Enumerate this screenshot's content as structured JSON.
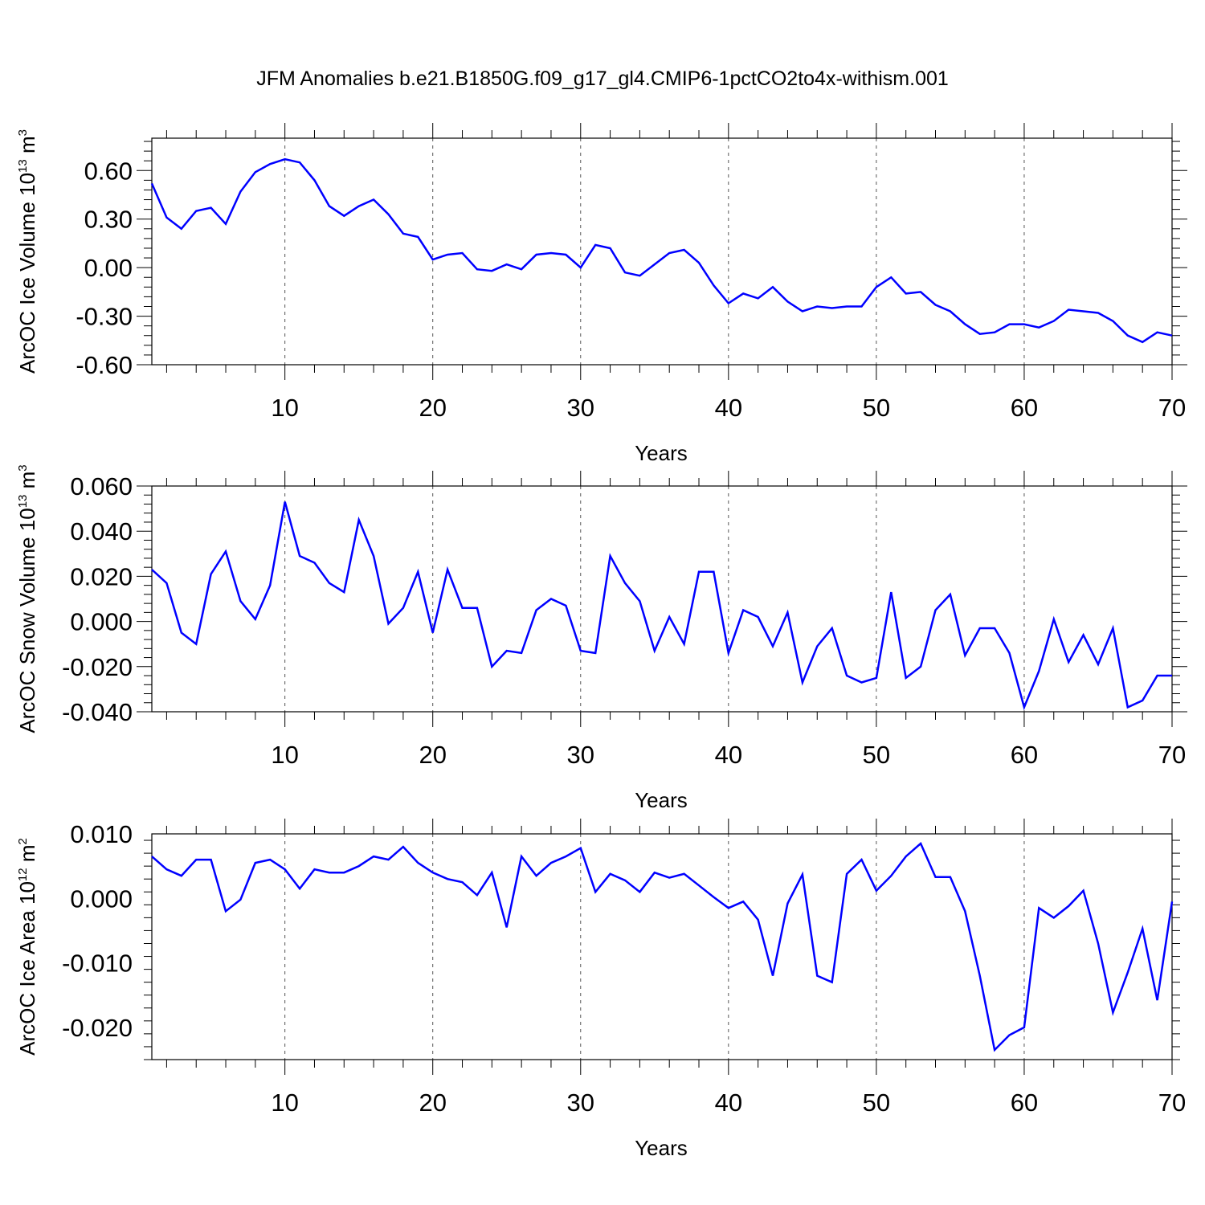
{
  "title": "JFM Anomalies b.e21.B1850G.f09_g17_gl4.CMIP6-1pctCO2to4x-withism.001",
  "colors": {
    "line": "#0000ff",
    "axes": "#000000",
    "grid": "#555555"
  },
  "chart_data": [
    {
      "type": "line",
      "ylabel": "ArcOC Ice Volume 10",
      "ylabel_exp": "13",
      "ylabel_unit": " m",
      "ylabel_unit_exp": "3",
      "xlabel": "Years",
      "xlim": [
        1,
        70
      ],
      "ylim": [
        -0.6,
        0.8
      ],
      "yticks": [
        -0.6,
        -0.3,
        0.0,
        0.3,
        0.6
      ],
      "ytick_labels": [
        "-0.60",
        "-0.30",
        "0.00",
        "0.30",
        "0.60"
      ],
      "xticks": [
        10,
        20,
        30,
        40,
        50,
        60,
        70
      ],
      "xtick_labels": [
        "10",
        "20",
        "30",
        "40",
        "50",
        "60",
        "70"
      ],
      "grid": "vertical dashed at major x ticks",
      "x": [
        1,
        2,
        3,
        4,
        5,
        6,
        7,
        8,
        9,
        10,
        11,
        12,
        13,
        14,
        15,
        16,
        17,
        18,
        19,
        20,
        21,
        22,
        23,
        24,
        25,
        26,
        27,
        28,
        29,
        30,
        31,
        32,
        33,
        34,
        35,
        36,
        37,
        38,
        39,
        40,
        41,
        42,
        43,
        44,
        45,
        46,
        47,
        48,
        49,
        50,
        51,
        52,
        53,
        54,
        55,
        56,
        57,
        58,
        59,
        60,
        61,
        62,
        63,
        64,
        65,
        66,
        67,
        68,
        69,
        70
      ],
      "y": [
        0.52,
        0.31,
        0.24,
        0.35,
        0.37,
        0.27,
        0.47,
        0.59,
        0.64,
        0.67,
        0.65,
        0.54,
        0.38,
        0.32,
        0.38,
        0.42,
        0.33,
        0.21,
        0.19,
        0.05,
        0.08,
        0.09,
        -0.01,
        -0.02,
        0.02,
        -0.01,
        0.08,
        0.09,
        0.08,
        0.0,
        0.14,
        0.12,
        -0.03,
        -0.05,
        0.02,
        0.09,
        0.11,
        0.03,
        -0.11,
        -0.22,
        -0.16,
        -0.19,
        -0.12,
        -0.21,
        -0.27,
        -0.24,
        -0.25,
        -0.24,
        -0.24,
        -0.12,
        -0.06,
        -0.16,
        -0.15,
        -0.23,
        -0.27,
        -0.35,
        -0.41,
        -0.4,
        -0.35,
        -0.35,
        -0.37,
        -0.33,
        -0.26,
        -0.27,
        -0.28,
        -0.33,
        -0.42,
        -0.46,
        -0.4,
        -0.42
      ]
    },
    {
      "type": "line",
      "ylabel": "ArcOC Snow Volume 10",
      "ylabel_exp": "13",
      "ylabel_unit": " m",
      "ylabel_unit_exp": "3",
      "xlabel": "Years",
      "xlim": [
        1,
        70
      ],
      "ylim": [
        -0.04,
        0.06
      ],
      "yticks": [
        -0.04,
        -0.02,
        0.0,
        0.02,
        0.04,
        0.06
      ],
      "ytick_labels": [
        "-0.040",
        "-0.020",
        "0.000",
        "0.020",
        "0.040",
        "0.060"
      ],
      "xticks": [
        10,
        20,
        30,
        40,
        50,
        60,
        70
      ],
      "xtick_labels": [
        "10",
        "20",
        "30",
        "40",
        "50",
        "60",
        "70"
      ],
      "grid": "vertical dashed at major x ticks",
      "x": [
        1,
        2,
        3,
        4,
        5,
        6,
        7,
        8,
        9,
        10,
        11,
        12,
        13,
        14,
        15,
        16,
        17,
        18,
        19,
        20,
        21,
        22,
        23,
        24,
        25,
        26,
        27,
        28,
        29,
        30,
        31,
        32,
        33,
        34,
        35,
        36,
        37,
        38,
        39,
        40,
        41,
        42,
        43,
        44,
        45,
        46,
        47,
        48,
        49,
        50,
        51,
        52,
        53,
        54,
        55,
        56,
        57,
        58,
        59,
        60,
        61,
        62,
        63,
        64,
        65,
        66,
        67,
        68,
        69,
        70
      ],
      "y": [
        0.023,
        0.017,
        -0.005,
        -0.01,
        0.021,
        0.031,
        0.009,
        0.001,
        0.016,
        0.053,
        0.029,
        0.026,
        0.017,
        0.013,
        0.045,
        0.029,
        -0.001,
        0.006,
        0.022,
        -0.005,
        0.023,
        0.006,
        0.006,
        -0.02,
        -0.013,
        -0.014,
        0.005,
        0.01,
        0.007,
        -0.013,
        -0.014,
        0.029,
        0.017,
        0.009,
        -0.013,
        0.002,
        -0.01,
        0.022,
        0.022,
        -0.014,
        0.005,
        0.002,
        -0.011,
        0.004,
        -0.027,
        -0.011,
        -0.003,
        -0.024,
        -0.027,
        -0.025,
        0.013,
        -0.025,
        -0.02,
        0.005,
        0.012,
        -0.015,
        -0.003,
        -0.003,
        -0.014,
        -0.038,
        -0.022,
        0.001,
        -0.018,
        -0.006,
        -0.019,
        -0.003,
        -0.038,
        -0.035,
        -0.024,
        -0.024
      ]
    },
    {
      "type": "line",
      "ylabel": "ArcOC Ice Area 10",
      "ylabel_exp": "12",
      "ylabel_unit": " m",
      "ylabel_unit_exp": "2",
      "xlabel": "Years",
      "xlim": [
        1,
        70
      ],
      "ylim": [
        -0.025,
        0.01
      ],
      "yticks": [
        -0.02,
        -0.01,
        0.0,
        0.01
      ],
      "ytick_labels": [
        "-0.020",
        "-0.010",
        "0.000",
        "0.010"
      ],
      "xticks": [
        10,
        20,
        30,
        40,
        50,
        60,
        70
      ],
      "xtick_labels": [
        "10",
        "20",
        "30",
        "40",
        "50",
        "60",
        "70"
      ],
      "grid": "vertical dashed at major x ticks",
      "x": [
        1,
        2,
        3,
        4,
        5,
        6,
        7,
        8,
        9,
        10,
        11,
        12,
        13,
        14,
        15,
        16,
        17,
        18,
        19,
        20,
        21,
        22,
        23,
        24,
        25,
        26,
        27,
        28,
        29,
        30,
        31,
        32,
        33,
        34,
        35,
        36,
        37,
        38,
        39,
        40,
        41,
        42,
        43,
        44,
        45,
        46,
        47,
        48,
        49,
        50,
        51,
        52,
        53,
        54,
        55,
        56,
        57,
        58,
        59,
        60,
        61,
        62,
        63,
        64,
        65,
        66,
        67,
        68,
        69,
        70
      ],
      "y": [
        0.0065,
        0.0045,
        0.0035,
        0.006,
        0.006,
        -0.002,
        -0.0002,
        0.0055,
        0.006,
        0.0045,
        0.0015,
        0.0045,
        0.004,
        0.004,
        0.005,
        0.0065,
        0.006,
        0.008,
        0.0055,
        0.004,
        0.003,
        0.0025,
        0.0005,
        0.004,
        -0.0045,
        0.0065,
        0.0035,
        0.0055,
        0.0065,
        0.0078,
        0.001,
        0.0038,
        0.0028,
        0.001,
        0.004,
        0.0032,
        0.0038,
        0.002,
        0.0002,
        -0.0015,
        -0.0005,
        -0.0033,
        -0.012,
        -0.0008,
        0.0037,
        -0.012,
        -0.013,
        0.0038,
        0.006,
        0.0012,
        0.0035,
        0.0065,
        0.0085,
        0.0033,
        0.0033,
        -0.002,
        -0.012,
        -0.0235,
        -0.0212,
        -0.02,
        -0.0015,
        -0.003,
        -0.0012,
        0.0012,
        -0.007,
        -0.0177,
        -0.0115,
        -0.0047,
        -0.0158,
        -0.0005
      ]
    }
  ]
}
